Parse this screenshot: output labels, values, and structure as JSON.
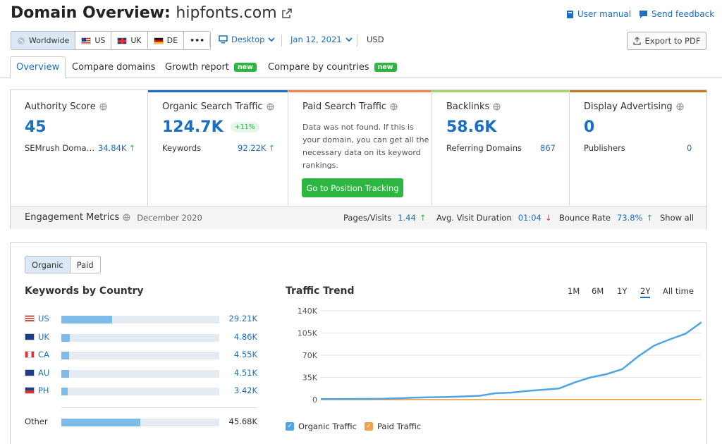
{
  "header": {
    "title_prefix": "Domain Overview:",
    "domain": "hipfonts.com",
    "user_manual": "User manual",
    "send_feedback": "Send feedback"
  },
  "filters": {
    "regions": [
      {
        "label": "Worldwide",
        "icon": "globe-icon",
        "active": true
      },
      {
        "label": "US",
        "icon": "us-flag-icon"
      },
      {
        "label": "UK",
        "icon": "uk-flag-icon"
      },
      {
        "label": "DE",
        "icon": "de-flag-icon"
      },
      {
        "label": "•••",
        "icon": "more-icon"
      }
    ],
    "device": "Desktop",
    "date": "Jan 12, 2021",
    "currency": "USD",
    "export": "Export to PDF"
  },
  "tabs": [
    {
      "label": "Overview",
      "active": true
    },
    {
      "label": "Compare domains"
    },
    {
      "label": "Growth report",
      "badge": "new"
    },
    {
      "label": "Compare by countries",
      "badge": "new"
    }
  ],
  "metrics": {
    "authority": {
      "title": "Authority Score",
      "value": "45",
      "sub": "SEMrush Doma…",
      "subval": "34.84K",
      "trend": "↑",
      "bar_color": "#ffffff"
    },
    "organic": {
      "title": "Organic Search Traffic",
      "value": "124.7K",
      "change": "+11%",
      "sub": "Keywords",
      "subval": "92.22K",
      "trend": "↑",
      "bar_color": "#1a6fc1"
    },
    "paid": {
      "title": "Paid Search Traffic",
      "message": "Data was not found. If this is your domain, you can get all the necessary data on its keyword rankings.",
      "button": "Go to Position Tracking",
      "bar_color": "#f0844a"
    },
    "backlinks": {
      "title": "Backlinks",
      "value": "58.6K",
      "sub": "Referring Domains",
      "subval": "867",
      "bar_color": "#a5d36c"
    },
    "display": {
      "title": "Display Advertising",
      "value": "0",
      "sub": "Publishers",
      "subval": "0",
      "bar_color": "#c27a1e"
    }
  },
  "engagement": {
    "title": "Engagement Metrics",
    "period": "December 2020",
    "pages_label": "Pages/Visits",
    "pages_value": "1.44",
    "pages_trend": "↑",
    "duration_label": "Avg. Visit Duration",
    "duration_value": "01:04",
    "duration_trend": "↓",
    "bounce_label": "Bounce Rate",
    "bounce_value": "73.8%",
    "bounce_trend": "↑",
    "show_all": "Show all"
  },
  "lower": {
    "toggle": [
      {
        "label": "Organic",
        "active": true
      },
      {
        "label": "Paid"
      }
    ],
    "keywords_title": "Keywords by Country",
    "countries": [
      {
        "code": "US",
        "value": "29.21K",
        "fraction": 0.32,
        "flag": "us-flag-icon"
      },
      {
        "code": "UK",
        "value": "4.86K",
        "fraction": 0.055,
        "flag": "uk-flag-icon"
      },
      {
        "code": "CA",
        "value": "4.55K",
        "fraction": 0.05,
        "flag": "ca-flag-icon"
      },
      {
        "code": "AU",
        "value": "4.51K",
        "fraction": 0.05,
        "flag": "au-flag-icon"
      },
      {
        "code": "PH",
        "value": "3.42K",
        "fraction": 0.04,
        "flag": "ph-flag-icon"
      }
    ],
    "other": {
      "label": "Other",
      "value": "45.68K",
      "fraction": 0.5
    },
    "trend_title": "Traffic Trend",
    "ranges": [
      {
        "label": "1M"
      },
      {
        "label": "6M"
      },
      {
        "label": "1Y"
      },
      {
        "label": "2Y",
        "active": true
      },
      {
        "label": "All time"
      }
    ]
  },
  "chart_data": {
    "type": "line",
    "title": "Traffic Trend",
    "ylim": [
      0,
      140000
    ],
    "yticks": [
      "140K",
      "105K",
      "70K",
      "35K",
      "0"
    ],
    "ytick_values": [
      140000,
      105000,
      70000,
      35000,
      0
    ],
    "x_count": 25,
    "series": [
      {
        "name": "Organic Traffic",
        "color": "#4ea5e5",
        "values": [
          800,
          900,
          1000,
          1100,
          1300,
          2200,
          3200,
          3800,
          4200,
          5000,
          6000,
          10000,
          11000,
          13500,
          15500,
          17500,
          27000,
          35000,
          40000,
          48000,
          68000,
          85000,
          95000,
          104000,
          122000
        ]
      },
      {
        "name": "Paid Traffic",
        "color": "#f0a24a",
        "values": [
          0,
          0,
          0,
          0,
          0,
          0,
          0,
          0,
          0,
          0,
          0,
          0,
          0,
          0,
          0,
          0,
          0,
          0,
          0,
          0,
          0,
          0,
          0,
          0,
          0
        ]
      }
    ],
    "grid": true,
    "legend": "bottom-left"
  }
}
